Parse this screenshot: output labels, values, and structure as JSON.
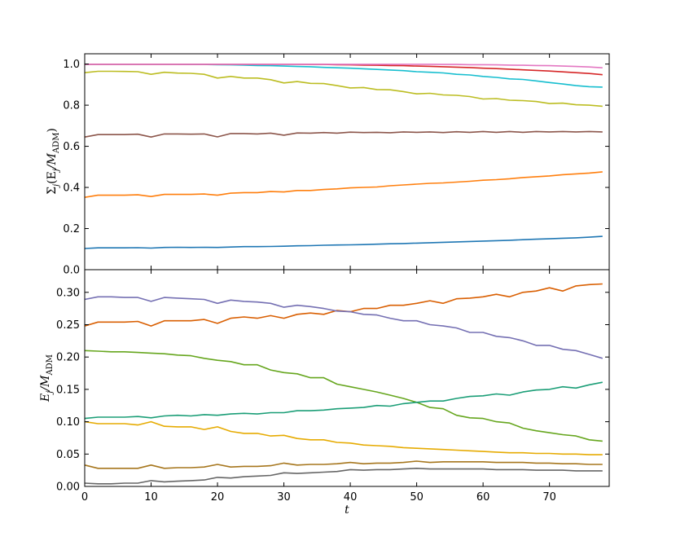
{
  "chart_data": [
    {
      "type": "line",
      "title": "",
      "ylabel": {
        "prefix": "Σ",
        "sub1": "j",
        "mid": "(E",
        "sub2": "j",
        "div": "/M",
        "sub3": "ADM",
        "close": ")"
      },
      "xlim": [
        0,
        79
      ],
      "ylim": [
        0.0,
        1.05
      ],
      "yticks": [
        0.0,
        0.2,
        0.4,
        0.6,
        0.8,
        1.0
      ],
      "ytick_labels": [
        "0.0",
        "0.2",
        "0.4",
        "0.6",
        "0.8",
        "1.0"
      ],
      "grid": false,
      "x": [
        0,
        2,
        4,
        6,
        8,
        10,
        12,
        14,
        16,
        18,
        20,
        22,
        24,
        26,
        28,
        30,
        32,
        34,
        36,
        38,
        40,
        42,
        44,
        46,
        48,
        50,
        52,
        54,
        56,
        58,
        60,
        62,
        64,
        66,
        68,
        70,
        72,
        74,
        76,
        78
      ],
      "series": [
        {
          "color": "#1f77b4",
          "values": [
            0.103,
            0.106,
            0.106,
            0.106,
            0.107,
            0.105,
            0.108,
            0.109,
            0.108,
            0.109,
            0.108,
            0.11,
            0.112,
            0.112,
            0.113,
            0.114,
            0.116,
            0.117,
            0.119,
            0.12,
            0.121,
            0.122,
            0.124,
            0.126,
            0.127,
            0.129,
            0.131,
            0.133,
            0.135,
            0.137,
            0.139,
            0.141,
            0.143,
            0.146,
            0.148,
            0.15,
            0.153,
            0.155,
            0.158,
            0.162
          ]
        },
        {
          "color": "#ff7f0e",
          "values": [
            0.352,
            0.362,
            0.362,
            0.362,
            0.364,
            0.356,
            0.366,
            0.366,
            0.366,
            0.368,
            0.362,
            0.372,
            0.375,
            0.375,
            0.38,
            0.378,
            0.385,
            0.385,
            0.39,
            0.393,
            0.398,
            0.4,
            0.402,
            0.408,
            0.412,
            0.416,
            0.42,
            0.422,
            0.426,
            0.43,
            0.435,
            0.438,
            0.442,
            0.448,
            0.452,
            0.456,
            0.462,
            0.466,
            0.47,
            0.476
          ]
        },
        {
          "color": "#8c564b",
          "values": [
            0.645,
            0.657,
            0.657,
            0.657,
            0.659,
            0.645,
            0.66,
            0.66,
            0.659,
            0.66,
            0.646,
            0.662,
            0.662,
            0.66,
            0.664,
            0.654,
            0.665,
            0.664,
            0.667,
            0.664,
            0.669,
            0.667,
            0.668,
            0.666,
            0.67,
            0.668,
            0.67,
            0.667,
            0.671,
            0.668,
            0.672,
            0.668,
            0.672,
            0.668,
            0.672,
            0.67,
            0.672,
            0.67,
            0.672,
            0.67
          ]
        },
        {
          "color": "#bcbd22",
          "values": [
            0.958,
            0.965,
            0.965,
            0.964,
            0.963,
            0.95,
            0.96,
            0.956,
            0.955,
            0.95,
            0.932,
            0.94,
            0.932,
            0.932,
            0.924,
            0.908,
            0.915,
            0.906,
            0.905,
            0.895,
            0.884,
            0.886,
            0.876,
            0.875,
            0.866,
            0.855,
            0.858,
            0.85,
            0.848,
            0.842,
            0.83,
            0.832,
            0.824,
            0.822,
            0.818,
            0.808,
            0.81,
            0.802,
            0.8,
            0.795
          ]
        },
        {
          "color": "#17becf",
          "values": [
            0.999,
            0.999,
            0.999,
            0.999,
            0.999,
            0.999,
            0.999,
            0.999,
            0.998,
            0.998,
            0.997,
            0.996,
            0.995,
            0.993,
            0.992,
            0.99,
            0.988,
            0.987,
            0.984,
            0.982,
            0.98,
            0.977,
            0.974,
            0.971,
            0.968,
            0.963,
            0.96,
            0.957,
            0.95,
            0.947,
            0.94,
            0.935,
            0.928,
            0.925,
            0.918,
            0.91,
            0.903,
            0.895,
            0.89,
            0.888
          ]
        },
        {
          "color": "#d62728",
          "values": [
            0.999,
            0.999,
            0.999,
            0.999,
            0.999,
            0.999,
            0.999,
            0.999,
            0.999,
            0.999,
            0.999,
            0.999,
            0.999,
            0.999,
            0.999,
            0.999,
            0.999,
            0.998,
            0.998,
            0.997,
            0.996,
            0.995,
            0.994,
            0.993,
            0.992,
            0.99,
            0.989,
            0.987,
            0.985,
            0.983,
            0.98,
            0.978,
            0.975,
            0.972,
            0.969,
            0.966,
            0.962,
            0.958,
            0.954,
            0.948
          ]
        },
        {
          "color": "#e377c2",
          "values": [
            0.999,
            0.999,
            0.999,
            0.999,
            0.999,
            0.999,
            0.999,
            0.999,
            0.999,
            0.999,
            0.999,
            0.999,
            0.999,
            0.999,
            0.999,
            0.999,
            0.999,
            0.999,
            0.999,
            0.999,
            0.999,
            0.999,
            0.999,
            0.999,
            0.999,
            0.999,
            0.999,
            0.998,
            0.998,
            0.997,
            0.997,
            0.996,
            0.995,
            0.994,
            0.993,
            0.992,
            0.99,
            0.988,
            0.986,
            0.982
          ]
        }
      ]
    },
    {
      "type": "line",
      "title": "",
      "xlabel": "t",
      "ylabel": {
        "prefix": "E",
        "sub1": "j",
        "div": "/M",
        "sub3": "ADM"
      },
      "xlim": [
        0,
        79
      ],
      "ylim": [
        0.0,
        0.335
      ],
      "xticks": [
        0,
        10,
        20,
        30,
        40,
        50,
        60,
        70
      ],
      "xtick_labels": [
        "0",
        "10",
        "20",
        "30",
        "40",
        "50",
        "60",
        "70"
      ],
      "yticks": [
        0.0,
        0.05,
        0.1,
        0.15,
        0.2,
        0.25,
        0.3
      ],
      "ytick_labels": [
        "0.00",
        "0.05",
        "0.10",
        "0.15",
        "0.20",
        "0.25",
        "0.30"
      ],
      "grid": false,
      "x": [
        0,
        2,
        4,
        6,
        8,
        10,
        12,
        14,
        16,
        18,
        20,
        22,
        24,
        26,
        28,
        30,
        32,
        34,
        36,
        38,
        40,
        42,
        44,
        46,
        48,
        50,
        52,
        54,
        56,
        58,
        60,
        62,
        64,
        66,
        68,
        70,
        72,
        74,
        76,
        78
      ],
      "series": [
        {
          "color": "#d95f02",
          "values": [
            0.248,
            0.254,
            0.254,
            0.254,
            0.255,
            0.248,
            0.256,
            0.256,
            0.256,
            0.258,
            0.252,
            0.26,
            0.262,
            0.26,
            0.264,
            0.26,
            0.266,
            0.268,
            0.266,
            0.272,
            0.27,
            0.275,
            0.275,
            0.28,
            0.28,
            0.283,
            0.287,
            0.283,
            0.29,
            0.291,
            0.293,
            0.297,
            0.293,
            0.3,
            0.302,
            0.307,
            0.302,
            0.31,
            0.312,
            0.313
          ]
        },
        {
          "color": "#7570b3",
          "values": [
            0.289,
            0.293,
            0.293,
            0.292,
            0.292,
            0.286,
            0.292,
            0.291,
            0.29,
            0.289,
            0.283,
            0.288,
            0.286,
            0.285,
            0.283,
            0.277,
            0.28,
            0.278,
            0.275,
            0.271,
            0.27,
            0.266,
            0.265,
            0.26,
            0.256,
            0.256,
            0.25,
            0.248,
            0.245,
            0.238,
            0.238,
            0.232,
            0.23,
            0.225,
            0.218,
            0.218,
            0.212,
            0.21,
            0.204,
            0.198
          ]
        },
        {
          "color": "#66a61e",
          "values": [
            0.21,
            0.209,
            0.208,
            0.208,
            0.207,
            0.206,
            0.205,
            0.203,
            0.202,
            0.198,
            0.195,
            0.193,
            0.188,
            0.188,
            0.18,
            0.176,
            0.174,
            0.168,
            0.168,
            0.158,
            0.154,
            0.15,
            0.146,
            0.141,
            0.136,
            0.13,
            0.122,
            0.12,
            0.11,
            0.106,
            0.105,
            0.1,
            0.098,
            0.09,
            0.086,
            0.083,
            0.08,
            0.078,
            0.072,
            0.07
          ]
        },
        {
          "color": "#1b9e77",
          "values": [
            0.105,
            0.107,
            0.107,
            0.107,
            0.108,
            0.106,
            0.109,
            0.11,
            0.109,
            0.111,
            0.11,
            0.112,
            0.113,
            0.112,
            0.114,
            0.114,
            0.117,
            0.117,
            0.118,
            0.12,
            0.121,
            0.122,
            0.125,
            0.124,
            0.128,
            0.13,
            0.132,
            0.132,
            0.136,
            0.139,
            0.14,
            0.143,
            0.141,
            0.146,
            0.149,
            0.15,
            0.154,
            0.152,
            0.157,
            0.161
          ]
        },
        {
          "color": "#e6ab02",
          "values": [
            0.1,
            0.097,
            0.097,
            0.097,
            0.095,
            0.1,
            0.093,
            0.092,
            0.092,
            0.088,
            0.092,
            0.085,
            0.082,
            0.082,
            0.078,
            0.079,
            0.074,
            0.072,
            0.072,
            0.068,
            0.067,
            0.064,
            0.063,
            0.062,
            0.06,
            0.059,
            0.058,
            0.057,
            0.056,
            0.055,
            0.054,
            0.053,
            0.052,
            0.052,
            0.051,
            0.051,
            0.05,
            0.05,
            0.049,
            0.049
          ]
        },
        {
          "color": "#a6761d",
          "values": [
            0.033,
            0.028,
            0.028,
            0.028,
            0.028,
            0.033,
            0.028,
            0.029,
            0.029,
            0.03,
            0.034,
            0.03,
            0.031,
            0.031,
            0.032,
            0.036,
            0.033,
            0.034,
            0.034,
            0.035,
            0.037,
            0.035,
            0.036,
            0.036,
            0.037,
            0.039,
            0.037,
            0.038,
            0.038,
            0.038,
            0.038,
            0.037,
            0.037,
            0.037,
            0.036,
            0.036,
            0.035,
            0.035,
            0.034,
            0.034
          ]
        },
        {
          "color": "#666666",
          "values": [
            0.005,
            0.004,
            0.004,
            0.005,
            0.005,
            0.009,
            0.007,
            0.008,
            0.009,
            0.01,
            0.014,
            0.013,
            0.015,
            0.016,
            0.017,
            0.021,
            0.02,
            0.021,
            0.022,
            0.023,
            0.026,
            0.025,
            0.026,
            0.026,
            0.027,
            0.028,
            0.027,
            0.027,
            0.027,
            0.027,
            0.027,
            0.026,
            0.026,
            0.026,
            0.025,
            0.025,
            0.025,
            0.024,
            0.024,
            0.024
          ]
        }
      ]
    }
  ]
}
